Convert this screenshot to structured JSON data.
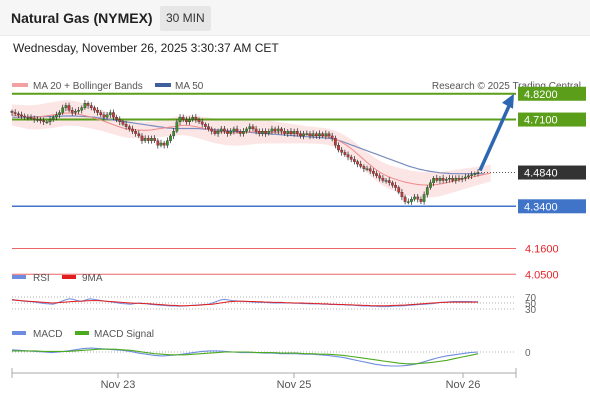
{
  "header": {
    "title": "Natural Gas (NYMEX)",
    "timeframe": "30 MIN",
    "datetime": "Wednesday, November 26, 2025 3:30:37 AM CET"
  },
  "legend": {
    "ma20_bb": "MA 20 + Bollinger Bands",
    "ma50": "MA 50",
    "copyright": "Research © 2025 Trading Central"
  },
  "colors": {
    "resistance": "#5a9e1a",
    "support": "#3f74c9",
    "red_level": "#e4262a",
    "current": "#333333",
    "arrow": "#2e67b1",
    "bollinger_fill": "#fbdcdc",
    "ma20": "#f08a8a",
    "ma50": "#7a8cbf",
    "candle_up": "#3d8f2a",
    "candle_down": "#c43a3a",
    "rsi": "#6f8de0",
    "rsi_ma": "#e11d1d",
    "macd": "#6f8de0",
    "macd_signal": "#4caa1f"
  },
  "chart_data": [
    {
      "type": "candlestick",
      "title": "Natural Gas (NYMEX)",
      "ylim": [
        4.0,
        4.9
      ],
      "x_ticks": [
        "Nov 23",
        "Nov 25",
        "Nov 26"
      ],
      "levels": [
        {
          "label": "4.8200",
          "value": 4.82,
          "kind": "resistance"
        },
        {
          "label": "4.7100",
          "value": 4.71,
          "kind": "resistance"
        },
        {
          "label": "4.4840",
          "value": 4.484,
          "kind": "current"
        },
        {
          "label": "4.3400",
          "value": 4.34,
          "kind": "support"
        },
        {
          "label": "4.1600",
          "value": 4.16,
          "kind": "target"
        },
        {
          "label": "4.0500",
          "value": 4.05,
          "kind": "target"
        }
      ],
      "closes": [
        4.74,
        4.735,
        4.73,
        4.725,
        4.72,
        4.72,
        4.715,
        4.71,
        4.71,
        4.705,
        4.7,
        4.7,
        4.71,
        4.72,
        4.73,
        4.74,
        4.76,
        4.77,
        4.75,
        4.74,
        4.745,
        4.75,
        4.76,
        4.78,
        4.77,
        4.76,
        4.75,
        4.74,
        4.73,
        4.72,
        4.73,
        4.74,
        4.72,
        4.71,
        4.7,
        4.69,
        4.68,
        4.67,
        4.66,
        4.65,
        4.64,
        4.62,
        4.63,
        4.62,
        4.63,
        4.62,
        4.6,
        4.61,
        4.6,
        4.62,
        4.64,
        4.66,
        4.7,
        4.72,
        4.71,
        4.7,
        4.71,
        4.72,
        4.71,
        4.7,
        4.69,
        4.68,
        4.67,
        4.66,
        4.65,
        4.66,
        4.67,
        4.66,
        4.65,
        4.66,
        4.67,
        4.66,
        4.65,
        4.66,
        4.67,
        4.68,
        4.67,
        4.66,
        4.65,
        4.66,
        4.65,
        4.66,
        4.67,
        4.66,
        4.67,
        4.66,
        4.65,
        4.66,
        4.65,
        4.66,
        4.65,
        4.64,
        4.65,
        4.65,
        4.64,
        4.65,
        4.64,
        4.65,
        4.64,
        4.65,
        4.64,
        4.63,
        4.6,
        4.58,
        4.57,
        4.56,
        4.55,
        4.54,
        4.53,
        4.52,
        4.51,
        4.5,
        4.5,
        4.49,
        4.48,
        4.47,
        4.46,
        4.45,
        4.45,
        4.44,
        4.43,
        4.42,
        4.4,
        4.38,
        4.36,
        4.36,
        4.37,
        4.38,
        4.37,
        4.36,
        4.39,
        4.42,
        4.44,
        4.46,
        4.45,
        4.46,
        4.45,
        4.455,
        4.46,
        4.45,
        4.46,
        4.455,
        4.46,
        4.465,
        4.47,
        4.475,
        4.48,
        4.484
      ],
      "ma20": [
        4.73,
        4.728,
        4.726,
        4.724,
        4.722,
        4.72,
        4.72,
        4.72,
        4.72,
        4.722,
        4.724,
        4.726,
        4.728,
        4.73,
        4.732,
        4.734,
        4.736,
        4.738,
        4.738,
        4.737,
        4.735,
        4.733,
        4.73,
        4.727,
        4.724,
        4.72,
        4.716,
        4.712,
        4.708,
        4.703,
        4.698,
        4.693,
        4.688,
        4.683,
        4.678,
        4.674,
        4.67,
        4.668,
        4.667,
        4.666,
        4.665,
        4.664,
        4.664,
        4.665,
        4.666,
        4.668,
        4.67,
        4.672,
        4.674,
        4.676,
        4.678,
        4.68,
        4.682,
        4.684,
        4.685,
        4.685,
        4.684,
        4.682,
        4.68,
        4.677,
        4.674,
        4.671,
        4.668,
        4.665,
        4.662,
        4.66,
        4.658,
        4.656,
        4.655,
        4.654,
        4.654,
        4.654,
        4.654,
        4.655,
        4.656,
        4.657,
        4.658,
        4.659,
        4.659,
        4.659,
        4.658,
        4.657,
        4.656,
        4.655,
        4.654,
        4.653,
        4.652,
        4.651,
        4.65,
        4.649,
        4.648,
        4.647,
        4.646,
        4.645,
        4.644,
        4.643,
        4.642,
        4.641,
        4.64,
        4.638,
        4.635,
        4.631,
        4.626,
        4.62,
        4.613,
        4.605,
        4.596,
        4.586,
        4.575,
        4.563,
        4.551,
        4.539,
        4.527,
        4.516,
        4.505,
        4.495,
        4.486,
        4.478,
        4.471,
        4.465,
        4.46,
        4.455,
        4.451,
        4.447,
        4.443,
        4.44,
        4.437,
        4.435,
        4.433,
        4.432,
        4.431,
        4.431,
        4.431,
        4.432,
        4.433,
        4.435,
        4.437,
        4.44,
        4.443,
        4.446,
        4.449,
        4.452,
        4.455,
        4.458,
        4.461,
        4.464,
        4.467,
        4.47,
        4.473,
        4.476,
        4.479,
        4.482
      ],
      "ma50": [
        4.72,
        4.72,
        4.72,
        4.72,
        4.721,
        4.721,
        4.721,
        4.722,
        4.722,
        4.722,
        4.723,
        4.723,
        4.723,
        4.724,
        4.724,
        4.724,
        4.725,
        4.725,
        4.725,
        4.725,
        4.725,
        4.724,
        4.724,
        4.723,
        4.722,
        4.721,
        4.72,
        4.718,
        4.716,
        4.714,
        4.712,
        4.71,
        4.708,
        4.706,
        4.704,
        4.702,
        4.7,
        4.698,
        4.696,
        4.694,
        4.692,
        4.69,
        4.688,
        4.686,
        4.684,
        4.682,
        4.68,
        4.678,
        4.676,
        4.674,
        4.673,
        4.672,
        4.672,
        4.672,
        4.672,
        4.672,
        4.672,
        4.672,
        4.672,
        4.671,
        4.67,
        4.669,
        4.668,
        4.667,
        4.666,
        4.665,
        4.664,
        4.663,
        4.662,
        4.661,
        4.66,
        4.659,
        4.658,
        4.657,
        4.656,
        4.655,
        4.654,
        4.653,
        4.652,
        4.651,
        4.65,
        4.649,
        4.648,
        4.647,
        4.646,
        4.645,
        4.644,
        4.643,
        4.642,
        4.641,
        4.64,
        4.639,
        4.638,
        4.637,
        4.636,
        4.635,
        4.634,
        4.633,
        4.632,
        4.631,
        4.63,
        4.628,
        4.625,
        4.621,
        4.617,
        4.612,
        4.607,
        4.602,
        4.597,
        4.592,
        4.587,
        4.582,
        4.577,
        4.572,
        4.567,
        4.562,
        4.557,
        4.552,
        4.547,
        4.542,
        4.537,
        4.532,
        4.527,
        4.522,
        4.517,
        4.512,
        4.508,
        4.504,
        4.5,
        4.497,
        4.494,
        4.491,
        4.489,
        4.487,
        4.485,
        4.483,
        4.482,
        4.481,
        4.48,
        4.479,
        4.479,
        4.479,
        4.479,
        4.479,
        4.479,
        4.479,
        4.479,
        4.479,
        4.479,
        4.479
      ]
    },
    {
      "type": "line",
      "title": "RSI",
      "ylim": [
        0,
        100
      ],
      "levels": [
        70,
        50,
        30
      ],
      "level_labels": [
        "70",
        "50",
        "30"
      ],
      "series": [
        {
          "name": "RSI",
          "values": [
            62,
            60,
            58,
            56,
            55,
            54,
            52,
            50,
            48,
            47,
            46,
            50,
            55,
            60,
            64,
            62,
            58,
            56,
            60,
            64,
            62,
            60,
            58,
            56,
            54,
            52,
            50,
            48,
            47,
            46,
            48,
            50,
            49,
            47,
            45,
            44,
            43,
            42,
            41,
            40,
            40,
            39,
            40,
            41,
            42,
            43,
            44,
            45,
            46,
            50,
            55,
            60,
            62,
            60,
            58,
            57,
            56,
            55,
            54,
            53,
            52,
            52,
            52,
            51,
            50,
            50,
            50,
            50,
            50,
            49,
            49,
            48,
            48,
            47,
            47,
            47,
            46,
            46,
            45,
            45,
            44,
            44,
            43,
            43,
            42,
            41,
            40,
            40,
            39,
            39,
            38,
            38,
            38,
            39,
            40,
            40,
            41,
            42,
            43,
            44,
            45,
            46,
            47,
            48,
            50,
            52,
            53,
            54,
            55,
            55,
            55,
            55,
            55,
            54,
            54
          ]
        },
        {
          "name": "9MA",
          "values": [
            60,
            59,
            58,
            57,
            56,
            55,
            54,
            53,
            52,
            51,
            50,
            51,
            52,
            53,
            54,
            55,
            56,
            56,
            57,
            58,
            58,
            58,
            57,
            56,
            55,
            54,
            53,
            52,
            51,
            50,
            49,
            49,
            48,
            48,
            47,
            46,
            45,
            44,
            43,
            42,
            42,
            41,
            41,
            41,
            42,
            42,
            43,
            44,
            45,
            46,
            48,
            50,
            52,
            54,
            55,
            56,
            56,
            56,
            55,
            55,
            54,
            54,
            53,
            53,
            52,
            52,
            52,
            51,
            51,
            50,
            50,
            50,
            49,
            49,
            48,
            48,
            47,
            47,
            46,
            46,
            45,
            45,
            44,
            44,
            43,
            43,
            42,
            42,
            41,
            41,
            41,
            41,
            41,
            42,
            42,
            43,
            43,
            44,
            45,
            46,
            47,
            48,
            49,
            50,
            51,
            52,
            52,
            53,
            53,
            53,
            53,
            53,
            53,
            53,
            53
          ]
        }
      ]
    },
    {
      "type": "line",
      "title": "MACD",
      "level_labels": [
        "0"
      ],
      "series": [
        {
          "name": "MACD",
          "values": [
            0.004,
            0.003,
            0.002,
            0.001,
            0.0,
            -0.001,
            0.0,
            0.002,
            0.004,
            0.006,
            0.007,
            0.006,
            0.005,
            0.004,
            0.003,
            0.001,
            -0.002,
            -0.004,
            -0.006,
            -0.007,
            -0.006,
            -0.005,
            -0.003,
            -0.001,
            0.001,
            0.002,
            0.002,
            0.001,
            0.0,
            -0.001,
            -0.001,
            -0.001,
            -0.002,
            -0.002,
            -0.003,
            -0.003,
            -0.003,
            -0.004,
            -0.004,
            -0.005,
            -0.006,
            -0.008,
            -0.01,
            -0.013,
            -0.016,
            -0.019,
            -0.022,
            -0.024,
            -0.025,
            -0.025,
            -0.024,
            -0.022,
            -0.018,
            -0.014,
            -0.01,
            -0.007,
            -0.005,
            -0.003,
            -0.001,
            0.0
          ]
        },
        {
          "name": "MACD Signal",
          "values": [
            0.002,
            0.002,
            0.002,
            0.002,
            0.001,
            0.001,
            0.001,
            0.001,
            0.002,
            0.003,
            0.004,
            0.005,
            0.005,
            0.005,
            0.004,
            0.003,
            0.001,
            -0.001,
            -0.003,
            -0.004,
            -0.005,
            -0.005,
            -0.005,
            -0.004,
            -0.003,
            -0.002,
            -0.001,
            0.0,
            0.0,
            0.0,
            0.0,
            -0.001,
            -0.001,
            -0.001,
            -0.002,
            -0.002,
            -0.002,
            -0.003,
            -0.003,
            -0.004,
            -0.004,
            -0.005,
            -0.006,
            -0.008,
            -0.01,
            -0.012,
            -0.014,
            -0.016,
            -0.018,
            -0.02,
            -0.021,
            -0.021,
            -0.02,
            -0.019,
            -0.017,
            -0.015,
            -0.012,
            -0.009,
            -0.006,
            -0.003
          ]
        }
      ]
    }
  ]
}
